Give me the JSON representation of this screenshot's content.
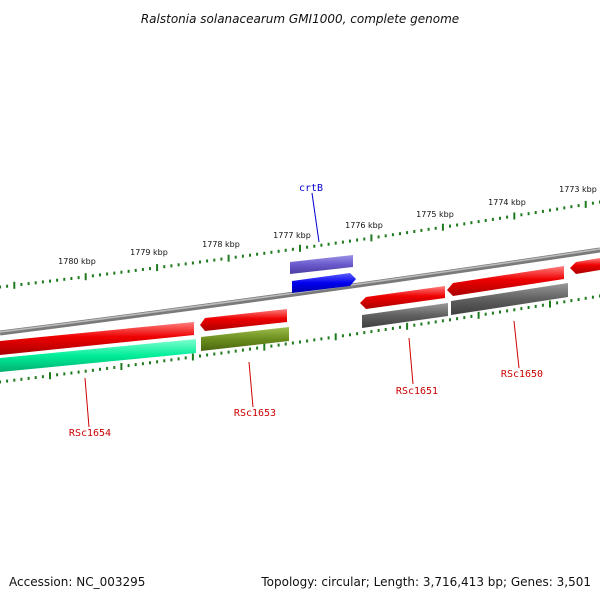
{
  "title": "Ralstonia solanacearum GMI1000, complete genome",
  "footer": {
    "accession": "Accession: NC_003295",
    "summary": "Topology: circular; Length: 3,716,413 bp; Genes: 3,501"
  },
  "kbp_labels": [
    "1780 kbp",
    "1779 kbp",
    "1778 kbp",
    "1777 kbp",
    "1776 kbp",
    "1775 kbp",
    "1774 kbp",
    "1773 kbp"
  ],
  "gene_labels": [
    {
      "text": "crtB",
      "color": "#0000cc"
    },
    {
      "text": "RSc1654",
      "color": "#cc0000"
    },
    {
      "text": "RSc1653",
      "color": "#cc0000"
    },
    {
      "text": "RSc1651",
      "color": "#cc0000"
    },
    {
      "text": "RSc1650",
      "color": "#cc0000"
    }
  ],
  "colors": {
    "backbone": "#808080",
    "tick": "#1e7a1e",
    "red": "#ee0000",
    "teal": "#00ee99",
    "olive": "#6b8e1e",
    "gray": "#606060",
    "purple": "#6a5acd",
    "blue": "#0000ee"
  }
}
